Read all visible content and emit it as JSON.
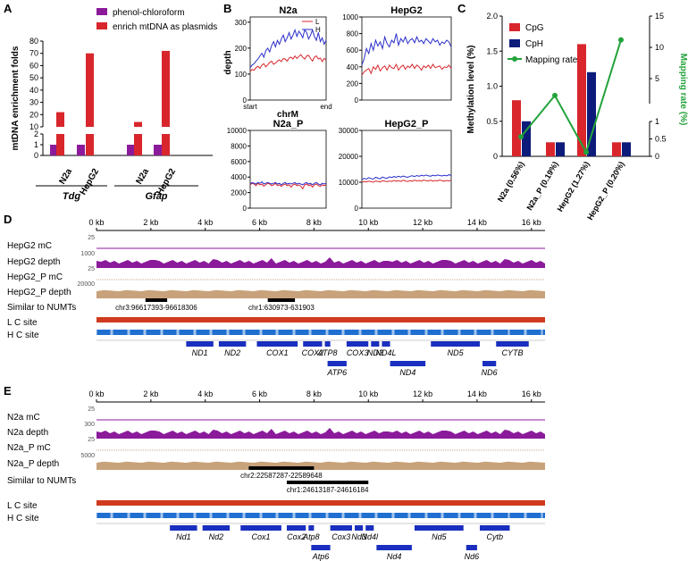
{
  "panel_labels": {
    "a": "A",
    "b": "B",
    "c": "C",
    "d": "D",
    "e": "E"
  },
  "colors": {
    "purple": "#8b1a9b",
    "red": "#d8262c",
    "blue": "#2a2ec9",
    "navy": "#0d1b7a",
    "green": "#23a33a",
    "tan": "#c8a27a",
    "track_blue": "#1f6fd1",
    "lc_red": "#d03a1e",
    "gene_blue": "#1a2fbf"
  },
  "chart_data": [
    {
      "id": "A",
      "type": "bar",
      "title": "",
      "ylabel": "mtDNA enrichment folds",
      "legend": [
        "phenol-chloroform",
        "enrich mtDNA as plasmids"
      ],
      "categories": [
        "N2a",
        "HepG2",
        "N2a",
        "HepG2"
      ],
      "groups": [
        "Tdg",
        "Gfap"
      ],
      "series": [
        {
          "name": "phenol-chloroform",
          "values": [
            1,
            1,
            1,
            1
          ]
        },
        {
          "name": "enrich mtDNA as plasmids",
          "values": [
            22,
            70,
            14,
            72
          ]
        }
      ],
      "yticks_lower": [
        "0",
        "1",
        "2"
      ],
      "yticks_upper": [
        "10",
        "20",
        "30",
        "40",
        "50",
        "60",
        "70",
        "80"
      ],
      "ylim": [
        0,
        80
      ]
    },
    {
      "id": "B",
      "type": "line",
      "legend": [
        "L",
        "H"
      ],
      "xlabel": "chrM",
      "ylabel": "depth",
      "xticks": [
        "start",
        "end"
      ],
      "subplots": [
        {
          "title": "N2a",
          "yticks": [
            "0",
            "100",
            "200",
            "300"
          ],
          "ylim": [
            0,
            320
          ],
          "L": [
            110,
            118,
            115,
            125,
            130,
            122,
            135,
            140,
            128,
            136,
            145,
            150,
            138,
            142,
            150,
            155,
            148,
            160,
            158,
            150,
            162,
            165,
            158,
            170,
            160,
            168,
            175,
            165,
            158,
            170,
            172,
            160,
            150,
            165,
            170,
            158,
            162,
            148,
            160,
            155
          ],
          "H": [
            125,
            135,
            140,
            150,
            158,
            170,
            180,
            165,
            190,
            200,
            185,
            210,
            225,
            205,
            230,
            215,
            235,
            250,
            225,
            240,
            260,
            235,
            250,
            270,
            245,
            265,
            255,
            240,
            270,
            260,
            235,
            250,
            270,
            245,
            230,
            260,
            225,
            240,
            215,
            230
          ]
        },
        {
          "title": "HepG2",
          "yticks": [
            "0",
            "200",
            "400",
            "600",
            "800",
            "1000"
          ],
          "ylim": [
            0,
            1000
          ],
          "L": [
            300,
            340,
            360,
            380,
            320,
            400,
            370,
            420,
            350,
            390,
            410,
            360,
            420,
            390,
            380,
            430,
            360,
            400,
            420,
            370,
            410,
            390,
            430,
            380,
            420,
            400,
            360,
            410,
            390,
            420,
            380,
            430,
            390,
            400,
            410,
            370,
            400,
            390,
            420,
            380
          ],
          "H": [
            420,
            500,
            620,
            560,
            680,
            600,
            720,
            650,
            700,
            620,
            760,
            680,
            640,
            720,
            690,
            800,
            660,
            740,
            700,
            760,
            680,
            720,
            740,
            690,
            760,
            700,
            720,
            680,
            740,
            710,
            680,
            740,
            700,
            720,
            660,
            700,
            680,
            720,
            700,
            640
          ]
        },
        {
          "title": "N2a_P",
          "yticks": [
            "0",
            "2000",
            "4000",
            "6000",
            "8000",
            "10000"
          ],
          "ylim": [
            0,
            10000
          ],
          "L": [
            3000,
            3200,
            3100,
            2900,
            3200,
            3000,
            3100,
            2800,
            3000,
            3200,
            3100,
            2900,
            3000,
            3200,
            2900,
            3000,
            2800,
            3000,
            3100,
            2900,
            3000,
            2700,
            3000,
            3100,
            2900,
            3000,
            2800,
            2500,
            3000,
            3100,
            2900,
            3000,
            2700,
            3000,
            3100,
            2900,
            2800,
            3000,
            2900,
            3000
          ],
          "H": [
            3100,
            3300,
            3200,
            3100,
            3300,
            3200,
            3400,
            3100,
            3200,
            3300,
            3200,
            3100,
            3200,
            3300,
            3100,
            3200,
            3000,
            3200,
            3300,
            3100,
            3200,
            3100,
            3200,
            3300,
            3100,
            3200,
            3100,
            3000,
            3200,
            3300,
            3100,
            3200,
            3000,
            3200,
            3300,
            3100,
            3000,
            3200,
            3100,
            3200
          ]
        },
        {
          "title": "HepG2_P",
          "yticks": [
            "0",
            "10000",
            "20000",
            "30000"
          ],
          "ylim": [
            0,
            30000
          ],
          "L": [
            10000,
            10300,
            10100,
            10400,
            10200,
            10000,
            10500,
            10300,
            10100,
            10600,
            10400,
            10200,
            10500,
            10300,
            10700,
            10400,
            10600,
            10300,
            10800,
            10500,
            10300,
            10600,
            10400,
            10800,
            10500,
            10700,
            10400,
            10900,
            10600,
            10500,
            10800,
            10400,
            10700,
            10500,
            10900,
            10600,
            10400,
            10700,
            10500,
            10800
          ],
          "H": [
            11000,
            11500,
            11200,
            11800,
            11400,
            11200,
            11900,
            11600,
            11300,
            12000,
            11700,
            11500,
            12100,
            11800,
            12200,
            11900,
            12300,
            12000,
            12400,
            12100,
            11900,
            12300,
            12500,
            12200,
            12600,
            12300,
            12700,
            12400,
            12800,
            12500,
            12300,
            12700,
            12500,
            12800,
            12600,
            12400,
            12700,
            12500,
            12900,
            12600
          ]
        }
      ]
    },
    {
      "id": "C",
      "type": "bar",
      "ylabel": "Methylation level (%)",
      "y2label": "Mapping rate (%)",
      "legend": [
        "CpG",
        "CpH",
        "Mapping rate"
      ],
      "categories": [
        "N2a (0.56%)",
        "N2a_P (0.19%)",
        "HepG2 (1.27%)",
        "HepG2_P (0.20%)"
      ],
      "series": [
        {
          "name": "CpG",
          "values": [
            0.8,
            0.2,
            1.6,
            0.2
          ]
        },
        {
          "name": "CpH",
          "values": [
            0.5,
            0.2,
            1.2,
            0.2
          ]
        }
      ],
      "line": {
        "name": "Mapping rate",
        "values": [
          0.56,
          2.3,
          0.12,
          11.2
        ]
      },
      "yticks": [
        "0",
        "0.5",
        "1.0",
        "1.5",
        "2.0"
      ],
      "ylim": [
        0,
        2.0
      ],
      "y2ticks_lower": [
        "0",
        "0.5",
        "1"
      ],
      "y2ticks_upper": [
        "5",
        "10",
        "15"
      ]
    },
    {
      "id": "D",
      "type": "track",
      "axis_ticks": [
        "0 kb",
        "2 kb",
        "4 kb",
        "6 kb",
        "8 kb",
        "10 kb",
        "12 kb",
        "14 kb",
        "16 kb"
      ],
      "tracks": [
        {
          "label": "HepG2 mC",
          "scale": "25"
        },
        {
          "label": "HepG2 depth",
          "scale": "1000"
        },
        {
          "label": "HepG2_P mC",
          "scale": "25"
        },
        {
          "label": "HepG2_P depth",
          "scale": "20000"
        },
        {
          "label": "Similar to NUMTs",
          "scale": ""
        },
        {
          "label": "L C site",
          "scale": ""
        },
        {
          "label": "H C site",
          "scale": ""
        }
      ],
      "numts": [
        {
          "label": "chr3:96617393-96618306",
          "start_kb": 1.8,
          "end_kb": 2.6
        },
        {
          "label": "chr1:630973-631903",
          "start_kb": 6.3,
          "end_kb": 7.3
        }
      ],
      "genes_top": [
        {
          "name": "ND1",
          "start_kb": 3.3,
          "end_kb": 4.3
        },
        {
          "name": "ND2",
          "start_kb": 4.5,
          "end_kb": 5.5
        },
        {
          "name": "COX1",
          "start_kb": 5.9,
          "end_kb": 7.4
        },
        {
          "name": "COX2",
          "start_kb": 7.6,
          "end_kb": 8.3
        },
        {
          "name": "ATP8",
          "start_kb": 8.4,
          "end_kb": 8.6
        },
        {
          "name": "COX3",
          "start_kb": 9.2,
          "end_kb": 10.0
        },
        {
          "name": "ND3",
          "start_kb": 10.1,
          "end_kb": 10.4
        },
        {
          "name": "ND4L",
          "start_kb": 10.5,
          "end_kb": 10.8
        },
        {
          "name": "ND5",
          "start_kb": 12.3,
          "end_kb": 14.1
        },
        {
          "name": "CYTB",
          "start_kb": 14.7,
          "end_kb": 15.9
        }
      ],
      "genes_bottom": [
        {
          "name": "ATP6",
          "start_kb": 8.5,
          "end_kb": 9.2
        },
        {
          "name": "ND4",
          "start_kb": 10.8,
          "end_kb": 12.1
        },
        {
          "name": "ND6",
          "start_kb": 14.2,
          "end_kb": 14.7
        }
      ]
    },
    {
      "id": "E",
      "type": "track",
      "axis_ticks": [
        "0 kb",
        "2 kb",
        "4 kb",
        "6 kb",
        "8 kb",
        "10 kb",
        "12 kb",
        "14 kb",
        "16 kb"
      ],
      "tracks": [
        {
          "label": "N2a mC",
          "scale": "25"
        },
        {
          "label": "N2a depth",
          "scale": "300"
        },
        {
          "label": "N2a_P mC",
          "scale": "25"
        },
        {
          "label": "N2a_P depth",
          "scale": "5000"
        },
        {
          "label": "Similar to NUMTs",
          "scale": ""
        },
        {
          "label": "L C site",
          "scale": ""
        },
        {
          "label": "H C site",
          "scale": ""
        }
      ],
      "numts": [
        {
          "label": "chr2:22587287-22589648",
          "start_kb": 5.6,
          "end_kb": 8.0
        },
        {
          "label": "chr1:24613187-24616184",
          "start_kb": 7.0,
          "end_kb": 10.0
        }
      ],
      "genes_top": [
        {
          "name": "Nd1",
          "start_kb": 2.7,
          "end_kb": 3.7
        },
        {
          "name": "Nd2",
          "start_kb": 3.9,
          "end_kb": 4.9
        },
        {
          "name": "Cox1",
          "start_kb": 5.3,
          "end_kb": 6.8
        },
        {
          "name": "Cox2",
          "start_kb": 7.0,
          "end_kb": 7.7
        },
        {
          "name": "Atp8",
          "start_kb": 7.8,
          "end_kb": 8.0
        },
        {
          "name": "Cox3",
          "start_kb": 8.6,
          "end_kb": 9.4
        },
        {
          "name": "Nd3",
          "start_kb": 9.5,
          "end_kb": 9.8
        },
        {
          "name": "Nd4l",
          "start_kb": 9.9,
          "end_kb": 10.2
        },
        {
          "name": "Nd5",
          "start_kb": 11.7,
          "end_kb": 13.5
        },
        {
          "name": "Cytb",
          "start_kb": 14.1,
          "end_kb": 15.2
        }
      ],
      "genes_bottom": [
        {
          "name": "Atp6",
          "start_kb": 7.9,
          "end_kb": 8.6
        },
        {
          "name": "Nd4",
          "start_kb": 10.3,
          "end_kb": 11.6
        },
        {
          "name": "Nd6",
          "start_kb": 13.6,
          "end_kb": 14.0
        }
      ]
    }
  ]
}
